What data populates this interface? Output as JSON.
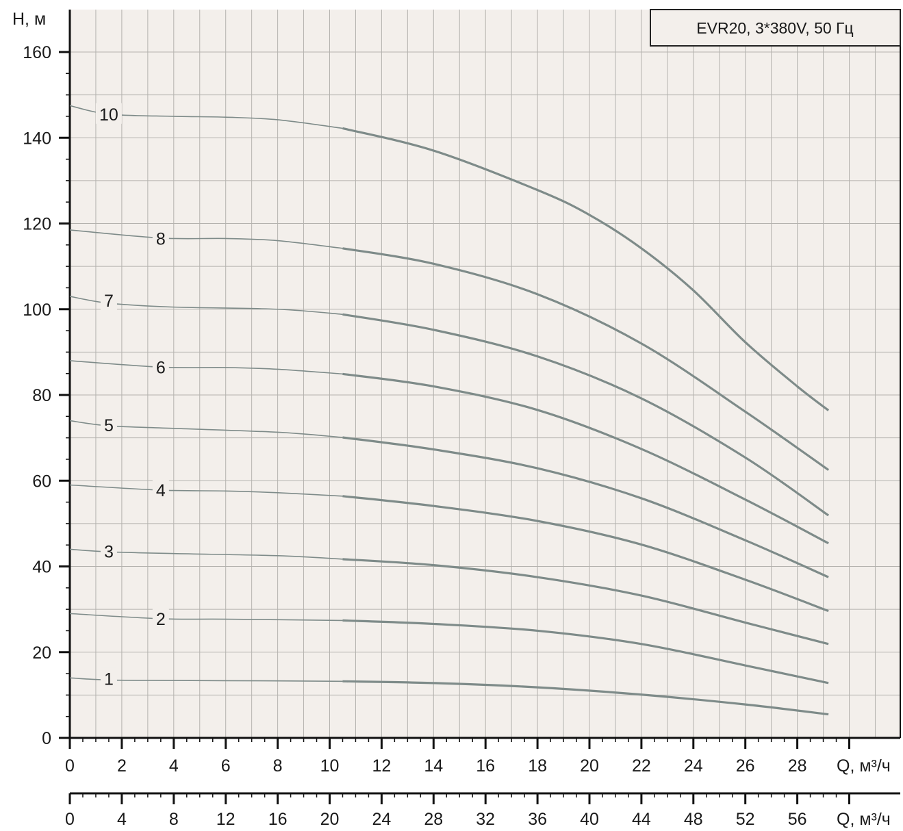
{
  "chart_data": {
    "type": "line",
    "title": "EVR20, 3*380V, 50 Гц",
    "ylabel": "H, м",
    "xlabel": "Q, м³/ч",
    "x2label": "Q, м³/ч",
    "ylim": [
      0,
      160
    ],
    "xlim": [
      0,
      30
    ],
    "y_ticks": [
      "0",
      "20",
      "40",
      "60",
      "80",
      "100",
      "120",
      "140",
      "160"
    ],
    "x_ticks": [
      "0",
      "2",
      "4",
      "6",
      "8",
      "10",
      "12",
      "14",
      "16",
      "18",
      "20",
      "22",
      "24",
      "26",
      "28"
    ],
    "x2_ticks": [
      "0",
      "4",
      "8",
      "12",
      "16",
      "20",
      "24",
      "28",
      "32",
      "36",
      "40",
      "44",
      "48",
      "52",
      "56"
    ],
    "grid": true,
    "line_color": "#7e8b89",
    "background": "#f3efeb",
    "series": [
      {
        "name": "1",
        "label_x": 1.5,
        "label_y": 13.8,
        "points": [
          [
            0,
            14
          ],
          [
            1.5,
            13.5
          ],
          [
            4,
            13.4
          ],
          [
            8,
            13.3
          ],
          [
            10.5,
            13.2
          ],
          [
            14,
            12.8
          ],
          [
            18,
            11.8
          ],
          [
            22,
            10.1
          ],
          [
            26,
            7.8
          ],
          [
            29.2,
            5.5
          ]
        ]
      },
      {
        "name": "2",
        "label_x": 3.5,
        "label_y": 27.8,
        "points": [
          [
            0,
            29
          ],
          [
            3.5,
            27.8
          ],
          [
            6,
            27.7
          ],
          [
            10.5,
            27.4
          ],
          [
            14,
            26.6
          ],
          [
            18,
            25
          ],
          [
            22,
            21.9
          ],
          [
            26,
            16.9
          ],
          [
            29.2,
            12.8
          ]
        ]
      },
      {
        "name": "3",
        "label_x": 1.5,
        "label_y": 43.5,
        "points": [
          [
            0,
            44
          ],
          [
            1.5,
            43.4
          ],
          [
            4,
            43
          ],
          [
            8,
            42.5
          ],
          [
            10.5,
            41.7
          ],
          [
            14,
            40.3
          ],
          [
            18,
            37.5
          ],
          [
            22,
            33.2
          ],
          [
            26,
            26.9
          ],
          [
            29.2,
            21.9
          ]
        ]
      },
      {
        "name": "4",
        "label_x": 3.5,
        "label_y": 57.8,
        "points": [
          [
            0,
            59
          ],
          [
            3.5,
            57.8
          ],
          [
            6,
            57.6
          ],
          [
            8,
            57.2
          ],
          [
            10.5,
            56.4
          ],
          [
            14,
            54.1
          ],
          [
            18,
            50.6
          ],
          [
            22,
            45.1
          ],
          [
            26,
            36.9
          ],
          [
            29.2,
            29.6
          ]
        ]
      },
      {
        "name": "5",
        "label_x": 1.5,
        "label_y": 73,
        "points": [
          [
            0,
            74
          ],
          [
            1.5,
            72.8
          ],
          [
            4,
            72.2
          ],
          [
            8,
            71.3
          ],
          [
            10.5,
            70.1
          ],
          [
            14,
            67.3
          ],
          [
            18,
            62.9
          ],
          [
            22,
            55.9
          ],
          [
            26,
            46.1
          ],
          [
            29.2,
            37.5
          ]
        ]
      },
      {
        "name": "6",
        "label_x": 3.5,
        "label_y": 86.5,
        "points": [
          [
            0,
            88
          ],
          [
            3.5,
            86.5
          ],
          [
            6,
            86.4
          ],
          [
            8,
            86
          ],
          [
            10.5,
            84.9
          ],
          [
            14,
            82
          ],
          [
            18,
            76.5
          ],
          [
            22,
            67.4
          ],
          [
            26,
            55.6
          ],
          [
            29.2,
            45.4
          ]
        ]
      },
      {
        "name": "7",
        "label_x": 1.5,
        "label_y": 102,
        "points": [
          [
            0,
            103
          ],
          [
            1.5,
            101.4
          ],
          [
            4,
            100.5
          ],
          [
            8,
            100
          ],
          [
            10.5,
            98.8
          ],
          [
            14,
            95.2
          ],
          [
            18,
            89
          ],
          [
            22,
            79.2
          ],
          [
            26,
            65.4
          ],
          [
            29.2,
            51.9
          ]
        ]
      },
      {
        "name": "8",
        "label_x": 3.5,
        "label_y": 116.5,
        "points": [
          [
            0,
            118.5
          ],
          [
            3.5,
            116.6
          ],
          [
            6,
            116.5
          ],
          [
            8,
            116
          ],
          [
            10.5,
            114.2
          ],
          [
            14,
            110.6
          ],
          [
            18,
            103.5
          ],
          [
            22,
            92
          ],
          [
            26,
            76.1
          ],
          [
            29.2,
            62.5
          ]
        ]
      },
      {
        "name": "10",
        "label_x": 1.5,
        "label_y": 145.5,
        "points": [
          [
            0,
            147.5
          ],
          [
            1.5,
            145.5
          ],
          [
            4,
            145
          ],
          [
            6,
            144.8
          ],
          [
            8,
            144.2
          ],
          [
            10.5,
            142.2
          ],
          [
            14,
            137
          ],
          [
            18,
            127.8
          ],
          [
            20,
            122
          ],
          [
            22,
            114.2
          ],
          [
            24,
            104.4
          ],
          [
            26,
            92.3
          ],
          [
            28,
            82
          ],
          [
            29.2,
            76.4
          ]
        ]
      }
    ]
  }
}
